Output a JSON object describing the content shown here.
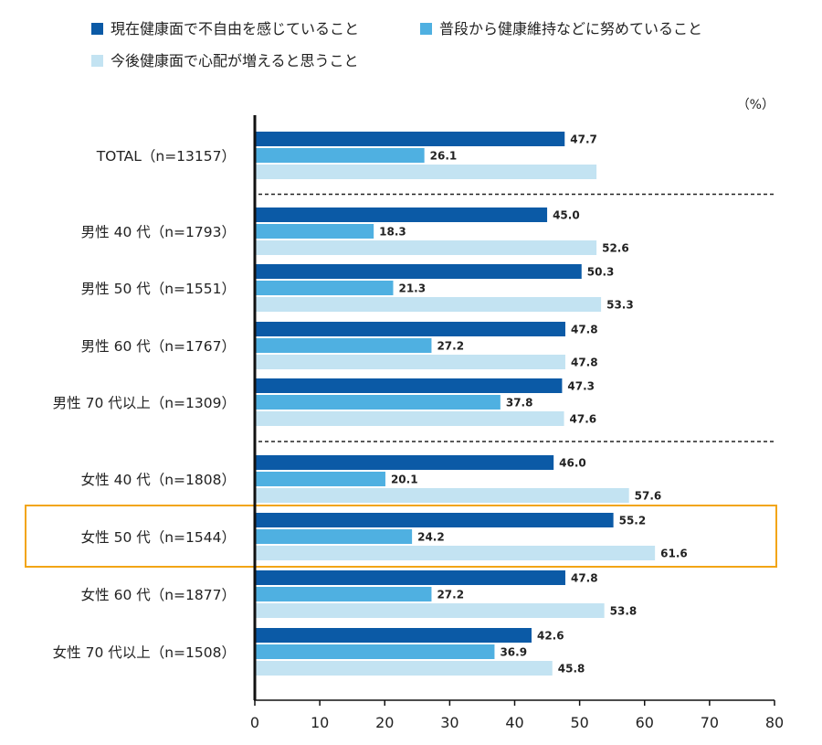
{
  "legend": {
    "items": [
      {
        "label": "現在健康面で不自由を感じていること",
        "color": "#0b5aa6"
      },
      {
        "label": "普段から健康維持などに努めていること",
        "color": "#4fb0e1"
      },
      {
        "label": "今後健康面で心配が増えると思うこと",
        "color": "#c3e3f2"
      }
    ]
  },
  "unit_label": "（%）",
  "chart_data": {
    "type": "bar",
    "orientation": "horizontal",
    "categories": [
      "TOTAL（n=13157）",
      "男性 40 代（n=1793）",
      "男性 50 代（n=1551）",
      "男性 60 代（n=1767）",
      "男性 70 代以上（n=1309）",
      "女性 40 代（n=1808）",
      "女性 50 代（n=1544）",
      "女性 60 代（n=1877）",
      "女性 70 代以上（n=1508）"
    ],
    "series": [
      {
        "name": "現在健康面で不自由を感じていること",
        "values": [
          47.7,
          45.0,
          50.3,
          47.8,
          47.3,
          46.0,
          55.2,
          47.8,
          42.6
        ],
        "labels": [
          "47.7",
          "45.0",
          "50.3",
          "47.8",
          "47.3",
          "46.0",
          "55.2",
          "47.8",
          "42.6"
        ]
      },
      {
        "name": "普段から健康維持などに努めていること",
        "values": [
          26.1,
          18.3,
          21.3,
          27.2,
          37.8,
          20.1,
          24.2,
          27.2,
          36.9
        ],
        "labels": [
          "26.1",
          "18.3",
          "21.3",
          "27.2",
          "37.8",
          "20.1",
          "24.2",
          "27.2",
          "36.9"
        ]
      },
      {
        "name": "今後健康面で心配が増えると思うこと",
        "values": [
          52.6,
          52.6,
          53.3,
          47.8,
          47.6,
          57.6,
          61.6,
          53.8,
          45.8
        ],
        "labels": [
          "",
          "52.6",
          "53.3",
          "47.8",
          "47.6",
          "57.6",
          "61.6",
          "53.8",
          "45.8"
        ]
      }
    ],
    "xlim": [
      0,
      80
    ],
    "xticks": [
      "0",
      "10",
      "20",
      "30",
      "40",
      "50",
      "60",
      "70",
      "80"
    ],
    "group_dividers_after": [
      0,
      4
    ],
    "highlight_category": 6,
    "highlight_color": "#f2a516"
  }
}
